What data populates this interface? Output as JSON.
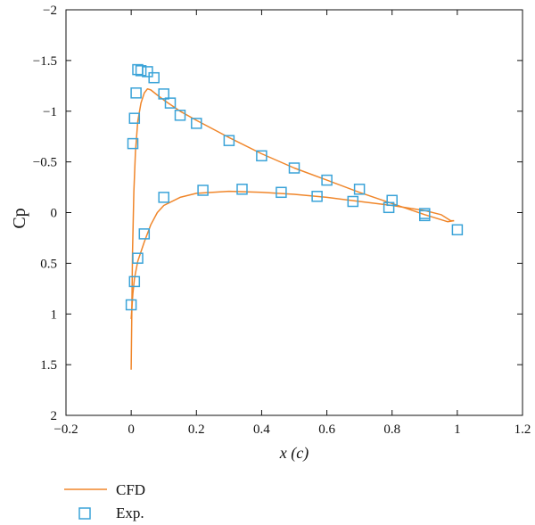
{
  "chart_data": {
    "type": "line",
    "xlabel": "x (c)",
    "ylabel": "Cp",
    "xlim": [
      -0.2,
      1.2
    ],
    "ylim": [
      -2,
      2
    ],
    "y_axis_inverted": true,
    "grid": false,
    "legend_position": "bottom-left, below plot",
    "xticks": [
      "−0.2",
      "0",
      "0.2",
      "0.4",
      "0.6",
      "0.8",
      "1",
      "1.2"
    ],
    "yticks": [
      "−2",
      "−1.5",
      "−1",
      "−0.5",
      "0",
      "0.5",
      "1",
      "1.5",
      "2"
    ],
    "series": [
      {
        "name": "CFD",
        "kind": "line",
        "color": "#f0862a",
        "segments": [
          [
            [
              0.0,
              1.55
            ],
            [
              0.004,
              0.4
            ],
            [
              0.008,
              -0.2
            ],
            [
              0.013,
              -0.6
            ],
            [
              0.02,
              -0.9
            ],
            [
              0.03,
              -1.08
            ],
            [
              0.04,
              -1.18
            ],
            [
              0.05,
              -1.22
            ],
            [
              0.06,
              -1.21
            ],
            [
              0.08,
              -1.16
            ],
            [
              0.1,
              -1.11
            ],
            [
              0.15,
              -1.0
            ],
            [
              0.2,
              -0.91
            ],
            [
              0.3,
              -0.74
            ],
            [
              0.4,
              -0.58
            ],
            [
              0.5,
              -0.44
            ],
            [
              0.6,
              -0.32
            ],
            [
              0.7,
              -0.2
            ],
            [
              0.8,
              -0.09
            ],
            [
              0.9,
              0.02
            ],
            [
              0.97,
              0.09
            ],
            [
              0.99,
              0.08
            ]
          ],
          [
            [
              0.0,
              1.05
            ],
            [
              0.005,
              0.8
            ],
            [
              0.01,
              0.65
            ],
            [
              0.02,
              0.48
            ],
            [
              0.04,
              0.29
            ],
            [
              0.06,
              0.12
            ],
            [
              0.08,
              0.0
            ],
            [
              0.1,
              -0.07
            ],
            [
              0.15,
              -0.15
            ],
            [
              0.2,
              -0.19
            ],
            [
              0.3,
              -0.21
            ],
            [
              0.4,
              -0.2
            ],
            [
              0.5,
              -0.18
            ],
            [
              0.6,
              -0.15
            ],
            [
              0.7,
              -0.11
            ],
            [
              0.8,
              -0.07
            ],
            [
              0.9,
              -0.02
            ],
            [
              0.95,
              0.02
            ],
            [
              0.98,
              0.08
            ],
            [
              0.99,
              0.08
            ]
          ]
        ]
      },
      {
        "name": "Exp.",
        "kind": "markers",
        "color": "#3aa3d8",
        "x": [
          0.005,
          0.01,
          0.015,
          0.02,
          0.03,
          0.05,
          0.07,
          0.1,
          0.12,
          0.15,
          0.2,
          0.3,
          0.4,
          0.5,
          0.6,
          0.7,
          0.8,
          0.9,
          0.0,
          0.01,
          0.02,
          0.04,
          0.1,
          0.22,
          0.34,
          0.46,
          0.57,
          0.68,
          0.79,
          0.9,
          1.0
        ],
        "y": [
          -0.68,
          -0.93,
          -1.18,
          -1.41,
          -1.4,
          -1.39,
          -1.33,
          -1.17,
          -1.08,
          -0.96,
          -0.88,
          -0.71,
          -0.56,
          -0.44,
          -0.32,
          -0.23,
          -0.12,
          0.01,
          0.91,
          0.68,
          0.45,
          0.21,
          -0.15,
          -0.22,
          -0.23,
          -0.2,
          -0.16,
          -0.11,
          -0.05,
          0.03,
          0.17
        ]
      }
    ]
  }
}
